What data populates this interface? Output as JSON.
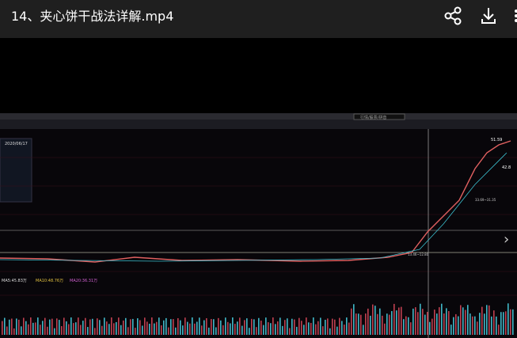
{
  "header": {
    "title": "14、夹心饼干战法详解.mp4"
  },
  "frame": {
    "search": "行情/股票/拼音",
    "date": "2020/06/17",
    "price_high": "51.59",
    "price_mid": "42.8",
    "range_label": "33.69~31.35",
    "low_label": "13.46~12.80",
    "volume_ma5": "MA5:45.83万",
    "volume_ma10": "MA10:48.76万",
    "volume_ma20": "MA20:36.31万"
  }
}
